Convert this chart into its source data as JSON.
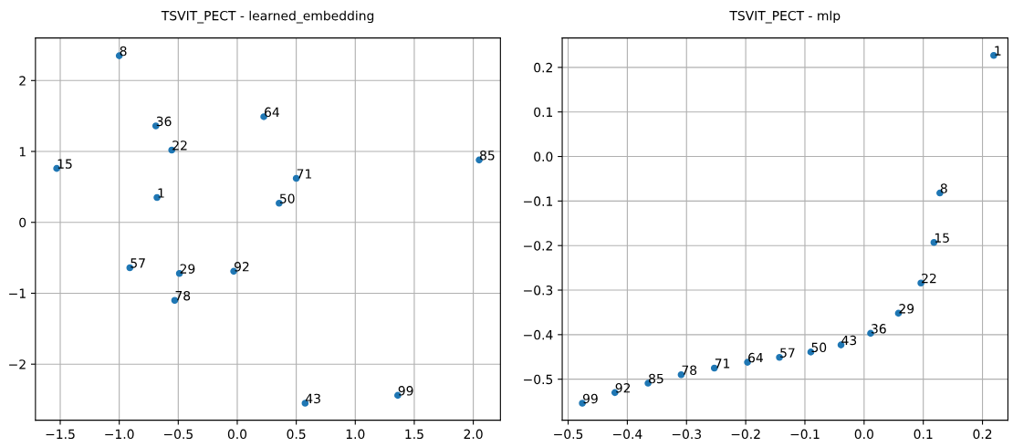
{
  "chart_data": [
    {
      "type": "scatter",
      "title": "TSVIT_PECT - learned_embedding",
      "marker": "circle",
      "grid": true,
      "xlim": [
        -1.71,
        2.23
      ],
      "xticks": [
        {
          "value": -1.5,
          "label": "−1.5"
        },
        {
          "value": -1.0,
          "label": "−1.0"
        },
        {
          "value": -0.5,
          "label": "−0.5"
        },
        {
          "value": 0.0,
          "label": "0.0"
        },
        {
          "value": 0.5,
          "label": "0.5"
        },
        {
          "value": 1.0,
          "label": "1.0"
        },
        {
          "value": 1.5,
          "label": "1.5"
        },
        {
          "value": 2.0,
          "label": "2.0"
        }
      ],
      "ylim": [
        -2.79,
        2.6
      ],
      "yticks": [
        {
          "value": -2,
          "label": "−2"
        },
        {
          "value": -1,
          "label": "−1"
        },
        0,
        1,
        2
      ],
      "series": [
        {
          "color": "#1f77b4",
          "x": [
            -0.68,
            -1.0,
            -1.53,
            -0.555,
            -0.49,
            -0.69,
            0.575,
            0.355,
            -0.91,
            0.225,
            0.5,
            -0.53,
            2.05,
            -0.03,
            1.36
          ],
          "values": [
            0.35,
            2.35,
            0.76,
            1.02,
            -0.72,
            1.36,
            -2.55,
            0.27,
            -0.64,
            1.49,
            0.62,
            -1.1,
            0.88,
            -0.69,
            -2.44
          ]
        }
      ],
      "annotations": [
        {
          "text": "1",
          "x": -0.68,
          "y": 0.35
        },
        {
          "text": "8",
          "x": -1.0,
          "y": 2.35
        },
        {
          "text": "15",
          "x": -1.53,
          "y": 0.76
        },
        {
          "text": "22",
          "x": -0.555,
          "y": 1.02
        },
        {
          "text": "29",
          "x": -0.49,
          "y": -0.72
        },
        {
          "text": "36",
          "x": -0.69,
          "y": 1.36
        },
        {
          "text": "43",
          "x": 0.575,
          "y": -2.55
        },
        {
          "text": "50",
          "x": 0.355,
          "y": 0.27
        },
        {
          "text": "57",
          "x": -0.91,
          "y": -0.64
        },
        {
          "text": "64",
          "x": 0.225,
          "y": 1.49
        },
        {
          "text": "71",
          "x": 0.5,
          "y": 0.62
        },
        {
          "text": "78",
          "x": -0.53,
          "y": -1.1
        },
        {
          "text": "85",
          "x": 2.05,
          "y": 0.88
        },
        {
          "text": "92",
          "x": -0.03,
          "y": -0.69
        },
        {
          "text": "99",
          "x": 1.36,
          "y": -2.44
        }
      ]
    },
    {
      "type": "scatter",
      "title": "TSVIT_PECT - mlp",
      "marker": "circle",
      "grid": true,
      "xlim": [
        -0.51,
        0.243
      ],
      "xticks": [
        {
          "value": -0.5,
          "label": "−0.5"
        },
        {
          "value": -0.4,
          "label": "−0.4"
        },
        {
          "value": -0.3,
          "label": "−0.3"
        },
        {
          "value": -0.2,
          "label": "−0.2"
        },
        {
          "value": -0.1,
          "label": "−0.1"
        },
        {
          "value": 0.0,
          "label": "0.0"
        },
        {
          "value": 0.1,
          "label": "0.1"
        },
        {
          "value": 0.2,
          "label": "0.2"
        }
      ],
      "ylim": [
        -0.592,
        0.266
      ],
      "yticks": [
        {
          "value": -0.5,
          "label": "−0.5"
        },
        {
          "value": -0.4,
          "label": "−0.4"
        },
        {
          "value": -0.3,
          "label": "−0.3"
        },
        {
          "value": -0.2,
          "label": "−0.2"
        },
        {
          "value": -0.1,
          "label": "−0.1"
        },
        {
          "value": 0.0,
          "label": "0.0"
        },
        {
          "value": 0.1,
          "label": "0.1"
        },
        {
          "value": 0.2,
          "label": "0.2"
        }
      ],
      "series": [
        {
          "color": "#1f77b4",
          "x": [
            0.219,
            0.128,
            0.118,
            0.096,
            0.058,
            0.011,
            -0.039,
            -0.09,
            -0.143,
            -0.197,
            -0.253,
            -0.309,
            -0.365,
            -0.421,
            -0.476
          ],
          "values": [
            0.227,
            -0.082,
            -0.193,
            -0.284,
            -0.352,
            -0.397,
            -0.423,
            -0.439,
            -0.451,
            -0.462,
            -0.475,
            -0.49,
            -0.509,
            -0.53,
            -0.554
          ]
        }
      ],
      "annotations": [
        {
          "text": "1",
          "x": 0.219,
          "y": 0.227
        },
        {
          "text": "8",
          "x": 0.128,
          "y": -0.082
        },
        {
          "text": "15",
          "x": 0.118,
          "y": -0.193
        },
        {
          "text": "22",
          "x": 0.096,
          "y": -0.284
        },
        {
          "text": "29",
          "x": 0.058,
          "y": -0.352
        },
        {
          "text": "36",
          "x": 0.011,
          "y": -0.397
        },
        {
          "text": "43",
          "x": -0.039,
          "y": -0.423
        },
        {
          "text": "50",
          "x": -0.09,
          "y": -0.439
        },
        {
          "text": "57",
          "x": -0.143,
          "y": -0.451
        },
        {
          "text": "64",
          "x": -0.197,
          "y": -0.462
        },
        {
          "text": "71",
          "x": -0.253,
          "y": -0.475
        },
        {
          "text": "78",
          "x": -0.309,
          "y": -0.49
        },
        {
          "text": "85",
          "x": -0.365,
          "y": -0.509
        },
        {
          "text": "92",
          "x": -0.421,
          "y": -0.53
        },
        {
          "text": "99",
          "x": -0.476,
          "y": -0.554
        }
      ]
    }
  ]
}
